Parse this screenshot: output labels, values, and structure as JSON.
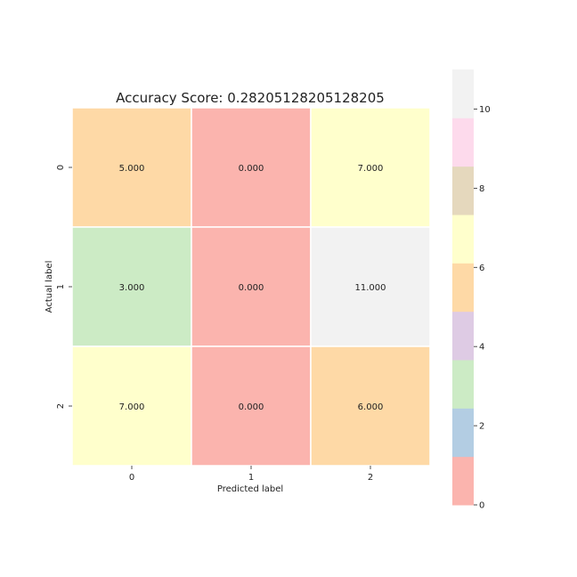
{
  "chart_data": {
    "type": "heatmap",
    "title": "Accuracy Score: 0.28205128205128205",
    "xlabel": "Predicted label",
    "ylabel": "Actual label",
    "x_categories": [
      "0",
      "1",
      "2"
    ],
    "y_categories": [
      "0",
      "1",
      "2"
    ],
    "values": [
      [
        5,
        0,
        7
      ],
      [
        3,
        0,
        11
      ],
      [
        7,
        0,
        6
      ]
    ],
    "cell_labels": [
      [
        "5.000",
        "0.000",
        "7.000"
      ],
      [
        "3.000",
        "0.000",
        "11.000"
      ],
      [
        "7.000",
        "0.000",
        "6.000"
      ]
    ],
    "colormap": "Pastel1",
    "vmin": 0,
    "vmax": 11,
    "colorbar": {
      "ticks": [
        0,
        2,
        4,
        6,
        8,
        10
      ],
      "tick_labels": [
        "0",
        "2",
        "4",
        "6",
        "8",
        "10"
      ],
      "colors": [
        "#fbb4ae",
        "#b3cde3",
        "#ccebc5",
        "#decbe4",
        "#fed9a6",
        "#ffffcc",
        "#e5d8bd",
        "#fddaec",
        "#f2f2f2"
      ]
    },
    "legend": "colorbar-right"
  }
}
